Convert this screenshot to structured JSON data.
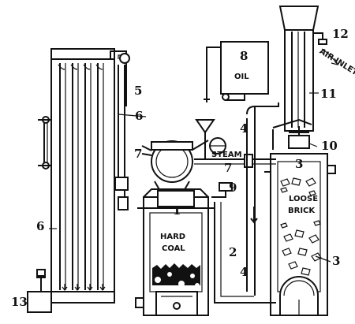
{
  "diagram": {
    "tags": {
      "oil": "OIL",
      "steam": "STEAM",
      "hard_coal": [
        "HARD",
        "COAL"
      ],
      "loose_brick": [
        "LOOSE",
        "BRICK"
      ],
      "air_inlet": "AIR INLET"
    },
    "callouts": [
      "1",
      "2",
      "3",
      "3",
      "4",
      "4",
      "5",
      "6",
      "6",
      "7",
      "7",
      "8",
      "9",
      "10",
      "11",
      "12",
      "13"
    ]
  }
}
